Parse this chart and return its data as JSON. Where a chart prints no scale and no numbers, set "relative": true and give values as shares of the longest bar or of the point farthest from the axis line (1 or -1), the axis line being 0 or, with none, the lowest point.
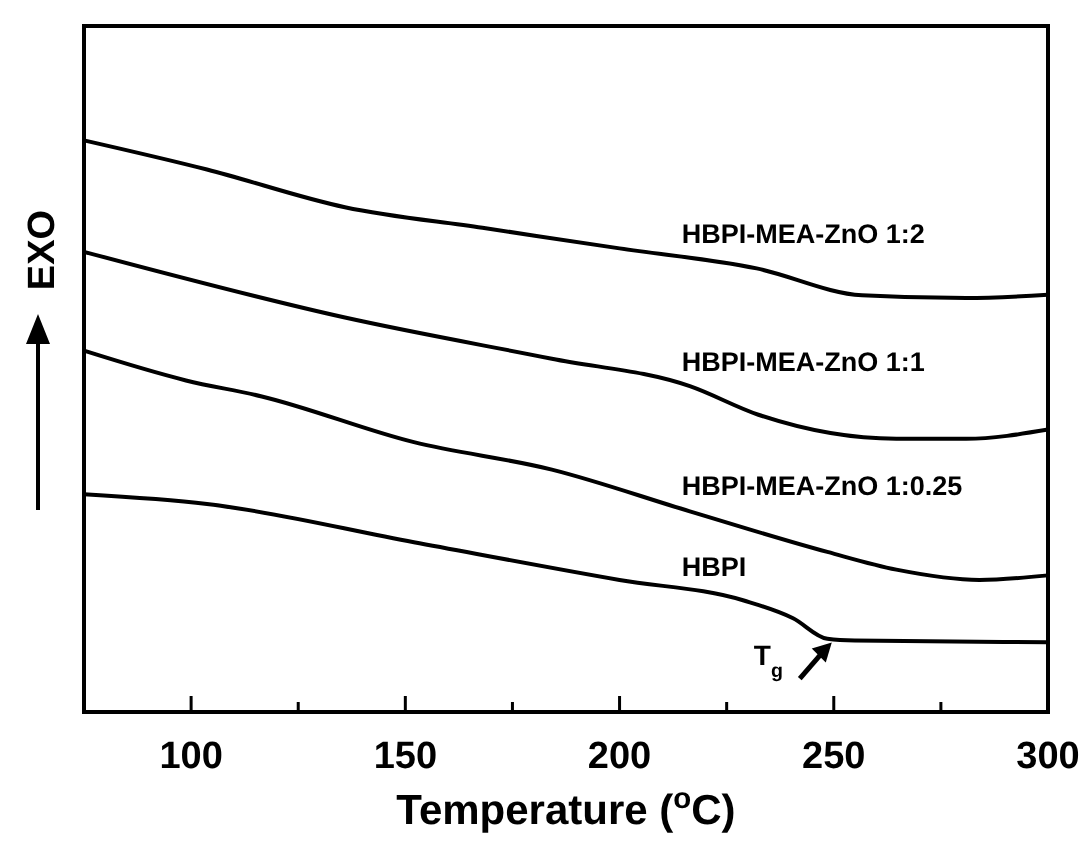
{
  "chart_data": {
    "type": "line",
    "relative": true,
    "xlabel": "Temperature ($^{o}$C)",
    "ylabel": "EXO",
    "xlim": [
      75,
      300
    ],
    "xticks": [
      100,
      {
        "value": 125,
        "label": null
      },
      150,
      {
        "value": 175,
        "label": null
      },
      200,
      {
        "value": 225,
        "label": null
      },
      250,
      {
        "value": 275,
        "label": null
      },
      300
    ],
    "tick_labels": "x",
    "grid": false,
    "line_style": "solid",
    "series": [
      {
        "name": "HBPI-MEA-ZnO 1:2",
        "color": "#000000",
        "x": [
          75,
          103.7,
          135.9,
          168,
          200,
          232,
          256.6,
          280.9,
          300
        ],
        "values": [
          1.0,
          0.949,
          0.883,
          0.847,
          0.811,
          0.776,
          0.729,
          0.724,
          0.73
        ]
      },
      {
        "name": "HBPI-MEA-ZnO 1:1",
        "color": "#000000",
        "x": [
          75,
          135.9,
          184.2,
          216.4,
          232.4,
          264.6,
          280.9,
          300
        ],
        "values": [
          0.805,
          0.69,
          0.618,
          0.57,
          0.52,
          0.478,
          0.478,
          0.494
        ]
      },
      {
        "name": "HBPI-MEA-ZnO 1:0.25",
        "color": "#000000",
        "x": [
          75,
          98.8,
          116.5,
          152,
          184.2,
          216.4,
          248.5,
          264.6,
          284,
          300
        ],
        "values": [
          0.632,
          0.58,
          0.552,
          0.472,
          0.424,
          0.351,
          0.28,
          0.249,
          0.231,
          0.239
        ]
      },
      {
        "name": "HBPI",
        "color": "#000000",
        "x": [
          75,
          103.7,
          152,
          200,
          229,
          240.5,
          248.5,
          254.9,
          300
        ],
        "values": [
          0.381,
          0.364,
          0.297,
          0.231,
          0.195,
          0.164,
          0.128,
          0.125,
          0.122
        ]
      }
    ],
    "annotations": [
      {
        "text": "T$_{g}$",
        "x": 250,
        "y": 0.125
      }
    ]
  }
}
